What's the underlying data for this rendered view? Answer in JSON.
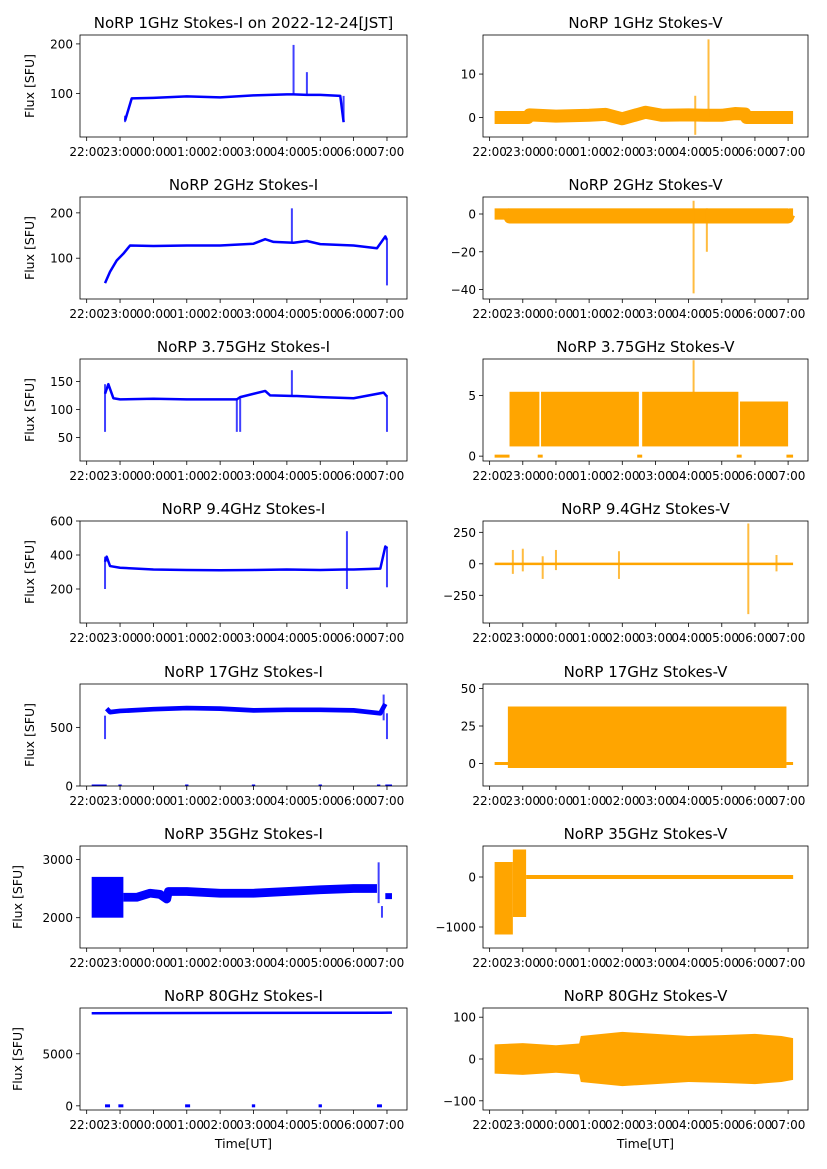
{
  "figure": {
    "colors": {
      "stokes_i": "#0000ff",
      "stokes_v": "#ffa500",
      "axes": "#000000"
    }
  },
  "chart_data": [
    {
      "type": "scatter",
      "panel": "1GHz-I",
      "title": "NoRP 1GHz Stokes-I on 2022-12-24[JST]",
      "ylabel": "Flux [SFU]",
      "xlabel": "",
      "series_color": "#0000ff",
      "xlim": [
        21.8,
        31.6
      ],
      "ylim": [
        12,
        218
      ],
      "yticks": [
        100,
        200
      ],
      "xticks": [
        "22:00",
        "23:00",
        "00:00",
        "01:00",
        "02:00",
        "03:00",
        "04:00",
        "05:00",
        "06:00",
        "07:00"
      ],
      "x": [
        23.15,
        23.35,
        24,
        25,
        26,
        27,
        28,
        28.2,
        28.6,
        29,
        29.6,
        29.7
      ],
      "y": [
        45,
        90,
        91,
        94,
        92,
        96,
        98,
        98,
        97,
        97,
        95,
        42
      ],
      "spikes": [
        {
          "x": 28.2,
          "ymin": 98,
          "ymax": 198
        },
        {
          "x": 28.6,
          "ymin": 97,
          "ymax": 143
        },
        {
          "x": 29.7,
          "ymin": 42,
          "ymax": 95
        },
        {
          "x": 23.15,
          "ymin": 42,
          "ymax": 55
        }
      ],
      "band": 3
    },
    {
      "type": "scatter",
      "panel": "1GHz-V",
      "title": "NoRP 1GHz Stokes-V",
      "ylabel": "",
      "xlabel": "",
      "series_color": "#ffa500",
      "xlim": [
        21.8,
        31.6
      ],
      "ylim": [
        -4.5,
        19
      ],
      "yticks": [
        0,
        10
      ],
      "xticks": [
        "22:00",
        "23:00",
        "00:00",
        "01:00",
        "02:00",
        "03:00",
        "04:00",
        "05:00",
        "06:00",
        "07:00"
      ],
      "x": [
        22.15,
        23.15,
        23.2,
        24,
        25,
        25.5,
        26,
        26.7,
        27.2,
        28,
        28.5,
        29,
        29.4,
        29.7,
        29.75,
        31.15
      ],
      "y": [
        0,
        0,
        0.6,
        0.3,
        0.5,
        0.7,
        -0.3,
        1.2,
        0.5,
        0.6,
        0.5,
        0.5,
        0.9,
        0.8,
        0,
        0
      ],
      "spikes": [
        {
          "x": 28.2,
          "ymin": -4,
          "ymax": 5
        },
        {
          "x": 28.6,
          "ymin": 0,
          "ymax": 18
        }
      ],
      "band": 3
    },
    {
      "type": "scatter",
      "panel": "2GHz-I",
      "title": "NoRP 2GHz Stokes-I",
      "ylabel": "Flux [SFU]",
      "xlabel": "",
      "series_color": "#0000ff",
      "xlim": [
        21.8,
        31.6
      ],
      "ylim": [
        10,
        235
      ],
      "yticks": [
        100,
        200
      ],
      "xticks": [
        "22:00",
        "23:00",
        "00:00",
        "01:00",
        "02:00",
        "03:00",
        "04:00",
        "05:00",
        "06:00",
        "07:00"
      ],
      "x": [
        22.55,
        22.7,
        22.9,
        23.1,
        23.3,
        24,
        25,
        26,
        27,
        27.35,
        27.6,
        28.2,
        28.6,
        29,
        30,
        30.7,
        30.95,
        31.0
      ],
      "y": [
        45,
        70,
        95,
        110,
        128,
        127,
        128,
        128,
        132,
        142,
        136,
        134,
        138,
        131,
        128,
        122,
        148,
        140
      ],
      "spikes": [
        {
          "x": 28.15,
          "ymin": 134,
          "ymax": 210
        },
        {
          "x": 31.0,
          "ymin": 40,
          "ymax": 140
        }
      ],
      "band": 4
    },
    {
      "type": "scatter",
      "panel": "2GHz-V",
      "title": "NoRP 2GHz Stokes-V",
      "ylabel": "",
      "xlabel": "",
      "series_color": "#ffa500",
      "xlim": [
        21.8,
        31.6
      ],
      "ylim": [
        -45,
        9
      ],
      "yticks": [
        0,
        -20,
        -40
      ],
      "ytick_labels": [
        "0",
        "−20",
        "−40"
      ],
      "x": [
        22.15,
        22.55,
        22.6,
        31.0,
        31.05,
        31.15
      ],
      "y": [
        0,
        0,
        -2,
        -2,
        0,
        0
      ],
      "spikes": [
        {
          "x": 28.15,
          "ymin": -42,
          "ymax": 7
        },
        {
          "x": 28.55,
          "ymin": -20,
          "ymax": 3
        }
      ],
      "band": 6,
      "band_range": [
        22.55,
        31.0
      ],
      "xticks": [
        "22:00",
        "23:00",
        "00:00",
        "01:00",
        "02:00",
        "03:00",
        "04:00",
        "05:00",
        "06:00",
        "07:00"
      ]
    },
    {
      "type": "scatter",
      "panel": "3.75GHz-I",
      "title": "NoRP 3.75GHz Stokes-I",
      "ylabel": "Flux [SFU]",
      "xlabel": "",
      "series_color": "#0000ff",
      "xlim": [
        21.8,
        31.6
      ],
      "ylim": [
        8,
        190
      ],
      "yticks": [
        50,
        100,
        150
      ],
      "xticks": [
        "22:00",
        "23:00",
        "00:00",
        "01:00",
        "02:00",
        "03:00",
        "04:00",
        "05:00",
        "06:00",
        "07:00"
      ],
      "x": [
        22.55,
        22.65,
        22.8,
        23,
        24,
        25,
        26.5,
        26.6,
        27.35,
        27.5,
        28.2,
        28.3,
        29,
        30,
        30.9,
        31.0
      ],
      "y": [
        128,
        145,
        120,
        118,
        119,
        118,
        118,
        122,
        133,
        125,
        124,
        124,
        122,
        120,
        130,
        123
      ],
      "spikes": [
        {
          "x": 22.55,
          "ymin": 60,
          "ymax": 145
        },
        {
          "x": 28.15,
          "ymin": 124,
          "ymax": 170
        },
        {
          "x": 26.5,
          "ymin": 60,
          "ymax": 120
        },
        {
          "x": 26.6,
          "ymin": 60,
          "ymax": 120
        },
        {
          "x": 31.0,
          "ymin": 60,
          "ymax": 125
        }
      ],
      "band": 4
    },
    {
      "type": "scatter",
      "panel": "3.75GHz-V",
      "title": "NoRP 3.75GHz Stokes-V",
      "ylabel": "",
      "xlabel": "",
      "series_color": "#ffa500",
      "xlim": [
        21.8,
        31.6
      ],
      "ylim": [
        -0.4,
        8
      ],
      "yticks": [
        0,
        5
      ],
      "xticks": [
        "22:00",
        "23:00",
        "00:00",
        "01:00",
        "02:00",
        "03:00",
        "04:00",
        "05:00",
        "06:00",
        "07:00"
      ],
      "blocks": [
        {
          "x0": 22.6,
          "x1": 23.5,
          "ymin": 0.8,
          "ymax": 5.3
        },
        {
          "x0": 23.55,
          "x1": 26.5,
          "ymin": 0.8,
          "ymax": 5.3
        },
        {
          "x0": 26.6,
          "x1": 29.5,
          "ymin": 0.8,
          "ymax": 5.3
        },
        {
          "x0": 29.55,
          "x1": 31.0,
          "ymin": 0.8,
          "ymax": 4.5
        }
      ],
      "zero_segments": [
        [
          22.15,
          22.6
        ],
        [
          23.45,
          23.6
        ],
        [
          26.45,
          26.6
        ],
        [
          29.45,
          29.6
        ],
        [
          30.95,
          31.15
        ]
      ],
      "spikes": [
        {
          "x": 28.15,
          "ymin": 5,
          "ymax": 7.9
        }
      ]
    },
    {
      "type": "scatter",
      "panel": "9.4GHz-I",
      "title": "NoRP 9.4GHz Stokes-I",
      "ylabel": "Flux [SFU]",
      "xlabel": "",
      "series_color": "#0000ff",
      "xlim": [
        21.8,
        31.6
      ],
      "ylim": [
        0,
        600
      ],
      "yticks": [
        200,
        400,
        600
      ],
      "xticks": [
        "22:00",
        "23:00",
        "00:00",
        "01:00",
        "02:00",
        "03:00",
        "04:00",
        "05:00",
        "06:00",
        "07:00"
      ],
      "x": [
        22.55,
        22.6,
        22.7,
        23,
        24,
        25,
        26,
        27,
        28,
        29,
        29.7,
        30,
        30.8,
        30.95,
        31.0
      ],
      "y": [
        360,
        390,
        335,
        325,
        315,
        312,
        310,
        312,
        315,
        312,
        315,
        315,
        320,
        450,
        440
      ],
      "spikes": [
        {
          "x": 22.55,
          "ymin": 200,
          "ymax": 390
        },
        {
          "x": 29.8,
          "ymin": 200,
          "ymax": 540
        },
        {
          "x": 31.0,
          "ymin": 210,
          "ymax": 450
        }
      ],
      "band": 10
    },
    {
      "type": "scatter",
      "panel": "9.4GHz-V",
      "title": "NoRP 9.4GHz Stokes-V",
      "ylabel": "",
      "xlabel": "",
      "series_color": "#ffa500",
      "xlim": [
        21.8,
        31.6
      ],
      "ylim": [
        -470,
        340
      ],
      "yticks": [
        250,
        0,
        -250
      ],
      "ytick_labels": [
        "250",
        "0",
        "−250"
      ],
      "xticks": [
        "22:00",
        "23:00",
        "00:00",
        "01:00",
        "02:00",
        "03:00",
        "04:00",
        "05:00",
        "06:00",
        "07:00"
      ],
      "x": [
        22.15,
        31.15
      ],
      "y": [
        0,
        0
      ],
      "spikes": [
        {
          "x": 22.7,
          "ymin": -80,
          "ymax": 110
        },
        {
          "x": 23.0,
          "ymin": -60,
          "ymax": 120
        },
        {
          "x": 23.6,
          "ymin": -120,
          "ymax": 60
        },
        {
          "x": 24.0,
          "ymin": -50,
          "ymax": 110
        },
        {
          "x": 25.9,
          "ymin": -120,
          "ymax": 100
        },
        {
          "x": 29.8,
          "ymin": -400,
          "ymax": 320
        },
        {
          "x": 30.65,
          "ymin": -60,
          "ymax": 70
        }
      ],
      "band": 10
    },
    {
      "type": "scatter",
      "panel": "17GHz-I",
      "title": "NoRP 17GHz Stokes-I",
      "ylabel": "Flux [SFU]",
      "xlabel": "",
      "series_color": "#0000ff",
      "xlim": [
        21.8,
        31.6
      ],
      "ylim": [
        0,
        870
      ],
      "yticks": [
        0,
        500
      ],
      "xticks": [
        "22:00",
        "23:00",
        "00:00",
        "01:00",
        "02:00",
        "03:00",
        "04:00",
        "05:00",
        "06:00",
        "07:00"
      ],
      "x": [
        22.6,
        22.7,
        23,
        24,
        25,
        26,
        27,
        28,
        29,
        30,
        30.8,
        30.95
      ],
      "y": [
        660,
        630,
        640,
        655,
        665,
        660,
        645,
        650,
        650,
        645,
        620,
        700
      ],
      "spikes": [
        {
          "x": 22.55,
          "ymin": 400,
          "ymax": 600
        },
        {
          "x": 30.9,
          "ymin": 560,
          "ymax": 780
        },
        {
          "x": 31.0,
          "ymin": 400,
          "ymax": 620
        }
      ],
      "zero_segments": [
        [
          22.15,
          22.6
        ],
        [
          22.95,
          23.05
        ],
        [
          24.95,
          25.05
        ],
        [
          26.95,
          27.05
        ],
        [
          28.95,
          29.05
        ],
        [
          30.7,
          30.8
        ],
        [
          30.95,
          31.15
        ]
      ],
      "band": 40
    },
    {
      "type": "scatter",
      "panel": "17GHz-V",
      "title": "NoRP 17GHz Stokes-V",
      "ylabel": "",
      "xlabel": "",
      "series_color": "#ffa500",
      "xlim": [
        21.8,
        31.6
      ],
      "ylim": [
        -15,
        53
      ],
      "yticks": [
        0,
        25,
        50
      ],
      "xticks": [
        "22:00",
        "23:00",
        "00:00",
        "01:00",
        "02:00",
        "03:00",
        "04:00",
        "05:00",
        "06:00",
        "07:00"
      ],
      "blocks": [
        {
          "x0": 22.55,
          "x1": 30.95,
          "ymin": -3,
          "ymax": 38
        }
      ],
      "zero_segments": [
        [
          22.15,
          22.6
        ],
        [
          30.95,
          31.15
        ]
      ]
    },
    {
      "type": "scatter",
      "panel": "35GHz-I",
      "title": "NoRP 35GHz Stokes-I",
      "ylabel": "Flux [SFU]",
      "xlabel": "",
      "series_color": "#0000ff",
      "xlim": [
        21.8,
        31.6
      ],
      "ylim": [
        1480,
        3230
      ],
      "yticks": [
        2000,
        3000
      ],
      "xticks": [
        "22:00",
        "23:00",
        "00:00",
        "01:00",
        "02:00",
        "03:00",
        "04:00",
        "05:00",
        "06:00",
        "07:00"
      ],
      "x": [
        23.1,
        23.5,
        23.9,
        24.2,
        24.4,
        24.45,
        25,
        26,
        27,
        28,
        29,
        30,
        30.7
      ],
      "y": [
        2350,
        2350,
        2420,
        2400,
        2320,
        2450,
        2450,
        2420,
        2420,
        2450,
        2480,
        2500,
        2500
      ],
      "blocks": [
        {
          "x0": 22.15,
          "x1": 23.1,
          "ymin": 2000,
          "ymax": 2700
        }
      ],
      "spikes": [
        {
          "x": 30.75,
          "ymin": 2250,
          "ymax": 2950
        },
        {
          "x": 30.85,
          "ymin": 2000,
          "ymax": 2200
        }
      ],
      "segments_after": [
        {
          "x0": 30.95,
          "x1": 31.15,
          "y": 2370
        }
      ],
      "band": 150
    },
    {
      "type": "scatter",
      "panel": "35GHz-V",
      "title": "NoRP 35GHz Stokes-V",
      "ylabel": "",
      "xlabel": "",
      "series_color": "#ffa500",
      "xlim": [
        21.8,
        31.6
      ],
      "ylim": [
        -1420,
        620
      ],
      "yticks": [
        0,
        -1000
      ],
      "ytick_labels": [
        "0",
        "−1000"
      ],
      "xticks": [
        "22:00",
        "23:00",
        "00:00",
        "01:00",
        "02:00",
        "03:00",
        "04:00",
        "05:00",
        "06:00",
        "07:00"
      ],
      "x": [
        23.1,
        24.35,
        24.4,
        31.15
      ],
      "y": [
        0,
        0,
        0,
        0
      ],
      "blocks": [
        {
          "x0": 22.15,
          "x1": 22.7,
          "ymin": -1150,
          "ymax": 300
        },
        {
          "x0": 22.7,
          "x1": 23.1,
          "ymin": -800,
          "ymax": 550
        }
      ],
      "band": 80,
      "band_range": [
        24.35,
        31.15
      ]
    },
    {
      "type": "scatter",
      "panel": "80GHz-I",
      "title": "NoRP 80GHz Stokes-I",
      "ylabel": "Flux [SFU]",
      "xlabel": "Time[UT]",
      "series_color": "#0000ff",
      "xlim": [
        21.8,
        31.6
      ],
      "ylim": [
        -400,
        9400
      ],
      "yticks": [
        0,
        5000
      ],
      "xticks": [
        "22:00",
        "23:00",
        "00:00",
        "01:00",
        "02:00",
        "03:00",
        "04:00",
        "05:00",
        "06:00",
        "07:00"
      ],
      "x": [
        22.15,
        31.15
      ],
      "y": [
        8900,
        8950
      ],
      "zero_segments": [
        [
          22.55,
          22.7
        ],
        [
          22.95,
          23.1
        ],
        [
          24.95,
          25.1
        ],
        [
          26.95,
          27.05
        ],
        [
          28.95,
          29.05
        ],
        [
          30.7,
          30.85
        ]
      ],
      "band": 120
    },
    {
      "type": "scatter",
      "panel": "80GHz-V",
      "title": "NoRP 80GHz Stokes-V",
      "ylabel": "",
      "xlabel": "Time[UT]",
      "series_color": "#ffa500",
      "xlim": [
        21.8,
        31.6
      ],
      "ylim": [
        -122,
        122
      ],
      "yticks": [
        100,
        0,
        -100
      ],
      "ytick_labels": [
        "100",
        "0",
        "−100"
      ],
      "xticks": [
        "22:00",
        "23:00",
        "00:00",
        "01:00",
        "02:00",
        "03:00",
        "04:00",
        "05:00",
        "06:00",
        "07:00"
      ],
      "envelope": {
        "x": [
          22.15,
          23.0,
          24.0,
          24.7,
          24.75,
          26,
          27,
          28,
          29,
          30,
          30.8,
          31.15
        ],
        "half": [
          35,
          38,
          33,
          37,
          55,
          65,
          60,
          55,
          57,
          60,
          55,
          50
        ]
      }
    }
  ]
}
